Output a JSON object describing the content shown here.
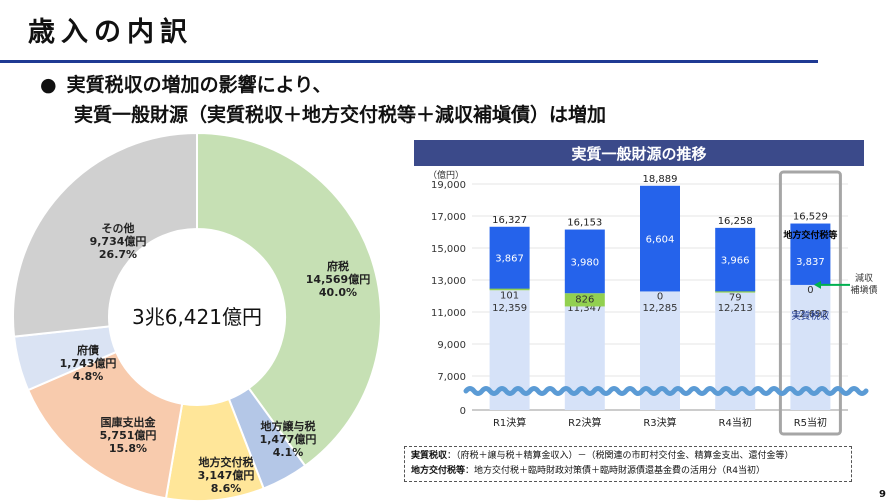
{
  "page": {
    "title": "歳入の内訳",
    "bullet_mark": "●",
    "bullet_line1": "実質税収の増加の影響により、",
    "bullet_line2": "実質一般財源（実質税収＋地方交付税等＋減収補塡債）は増加",
    "page_number": "9"
  },
  "chart_data": [
    {
      "type": "pie",
      "center_label": "3兆6,421億円",
      "slices": [
        {
          "name": "府税",
          "amount": "14,569億円",
          "percent": "40.0%",
          "value": 40.0,
          "color": "#c6e0b4"
        },
        {
          "name": "地方譲与税",
          "amount": "1,477億円",
          "percent": "4.1%",
          "value": 4.1,
          "color": "#b4c7e7"
        },
        {
          "name": "地方交付税",
          "amount": "3,147億円",
          "percent": "8.6%",
          "value": 8.6,
          "color": "#ffe699"
        },
        {
          "name": "国庫支出金",
          "amount": "5,751億円",
          "percent": "15.8%",
          "value": 15.8,
          "color": "#f8cbad"
        },
        {
          "name": "府債",
          "amount": "1,743億円",
          "percent": "4.8%",
          "value": 4.8,
          "color": "#dae3f3"
        },
        {
          "name": "その他",
          "amount": "9,734億円",
          "percent": "26.7%",
          "value": 26.7,
          "color": "#d0d0d0"
        }
      ]
    },
    {
      "type": "bar",
      "stacked": true,
      "title": "実質一般財源の推移",
      "unit": "（億円）",
      "categories": [
        "R1決算",
        "R2決算",
        "R3決算",
        "R4当初",
        "R5当初"
      ],
      "y_ticks": [
        "19,000",
        "17,000",
        "15,000",
        "13,000",
        "11,000",
        "9,000",
        "7,000",
        "0"
      ],
      "ylim": [
        7000,
        19000
      ],
      "axis_break": true,
      "series": [
        {
          "key": "tax",
          "values": [
            12359,
            11347,
            12285,
            12213,
            12692
          ],
          "labels": [
            "12,359",
            "11,347",
            "12,285",
            "12,213",
            "12,692"
          ],
          "color": "#d6e2f8"
        },
        {
          "key": "hosai",
          "values": [
            101,
            826,
            0,
            79,
            0
          ],
          "labels": [
            "101",
            "826",
            "0",
            "79",
            "0"
          ],
          "color": "#92d050"
        },
        {
          "key": "kofu",
          "values": [
            3867,
            3980,
            6604,
            3966,
            3837
          ],
          "labels": [
            "3,867",
            "3,980",
            "6,604",
            "3,966",
            "3,837"
          ],
          "color": "#2563eb"
        }
      ],
      "totals": [
        "16,327",
        "16,153",
        "18,889",
        "16,258",
        "16,529"
      ],
      "highlight_category": "R5当初",
      "annotations": {
        "kofu_label": "地方交付税等",
        "tax_label": "実質税収",
        "hosai_line1": "減収",
        "hosai_line2": "補塡債"
      },
      "notes": {
        "line1_term": "実質税収",
        "line1_text": "：（府税＋譲与税＋精算金収入）－（税関連の市町村交付金、精算金支出、還付金等）",
        "line2_term": "地方交付税等",
        "line2_text": "：地方交付税＋臨時財政対策債＋臨時財源債還基金費の活用分（R4当初）"
      }
    }
  ]
}
